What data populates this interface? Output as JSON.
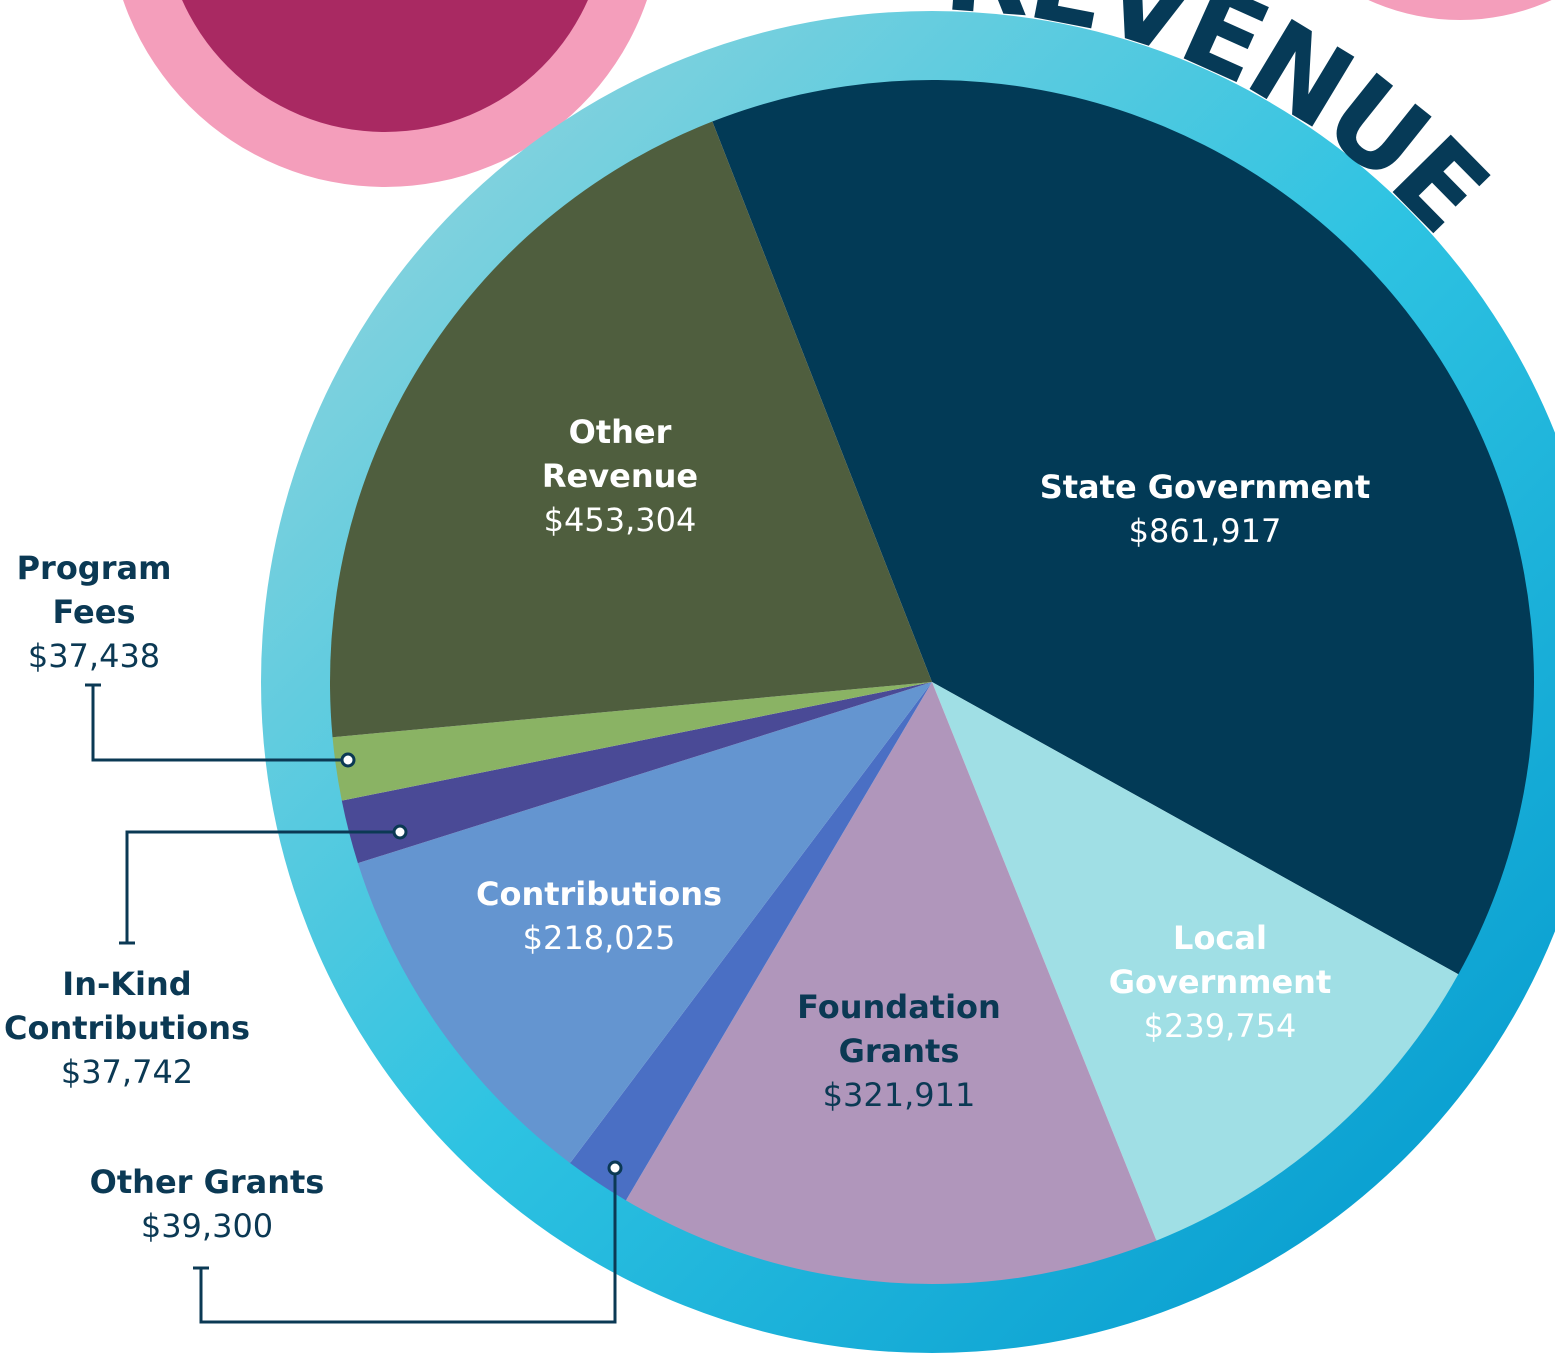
{
  "chart_data": {
    "type": "pie",
    "title": "REVENUE",
    "categories": [
      "State Government",
      "Local Government",
      "Foundation Grants",
      "Other Grants",
      "Contributions",
      "In-Kind Contributions",
      "Program Fees",
      "Other Revenue"
    ],
    "values": [
      861917,
      239754,
      321911,
      39300,
      218025,
      37742,
      37438,
      453304
    ],
    "value_labels": [
      "$861,917",
      "$239,754",
      "$321,911",
      "$39,300",
      "$218,025",
      "$37,742",
      "$37,438",
      "$453,304"
    ],
    "colors": [
      "#023a56",
      "#a0dfe5",
      "#b096bb",
      "#4a6fc4",
      "#6495d0",
      "#4a4a96",
      "#8ab364",
      "#4f5e3e"
    ]
  }
}
